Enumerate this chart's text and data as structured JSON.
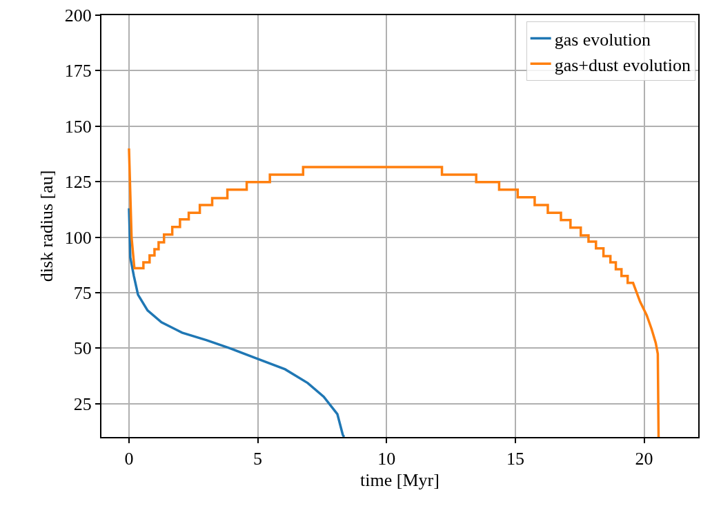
{
  "chart_data": {
    "type": "line",
    "xlabel": "time [Myr]",
    "ylabel": "disk radius [au]",
    "xlim": [
      -1.07,
      22.1
    ],
    "xticks": [
      0,
      5,
      10,
      15,
      20
    ],
    "ylim": [
      10,
      200
    ],
    "yticks": [
      25,
      50,
      75,
      100,
      125,
      150,
      175,
      200
    ],
    "grid": true,
    "legend": "top right",
    "series": [
      {
        "name": "gas evolution",
        "color": "#1f77b4",
        "x": [
          0,
          0.02,
          0.05,
          0.19,
          0.35,
          0.72,
          1.26,
          2.06,
          3.02,
          3.93,
          5,
          6.06,
          6.94,
          7.56,
          8.09,
          8.3,
          8.35
        ],
        "values": [
          113,
          105,
          90.9,
          82.5,
          74.1,
          67,
          61.7,
          57,
          53.6,
          49.9,
          45.2,
          40.5,
          34.3,
          28.1,
          20.3,
          11,
          10
        ]
      },
      {
        "name": "gas+dust evolution",
        "color": "#ff7f0e",
        "x": [
          0,
          0.1,
          0.21,
          0.56,
          0.56,
          0.8,
          0.8,
          0.99,
          0.99,
          1.15,
          1.15,
          1.36,
          1.36,
          1.68,
          1.68,
          1.98,
          1.98,
          2.32,
          2.32,
          2.75,
          2.75,
          3.23,
          3.23,
          3.82,
          3.82,
          4.57,
          4.57,
          5.47,
          5.47,
          6.76,
          6.76,
          12.15,
          12.15,
          13.48,
          13.48,
          14.37,
          14.37,
          15.09,
          15.09,
          15.75,
          15.75,
          16.26,
          16.26,
          16.77,
          16.77,
          17.14,
          17.14,
          17.54,
          17.54,
          17.84,
          17.84,
          18.13,
          18.13,
          18.42,
          18.42,
          18.69,
          18.69,
          18.9,
          18.9,
          19.12,
          19.12,
          19.36,
          19.36,
          19.57,
          19.84,
          20.1,
          20.29,
          20.45,
          20.53,
          20.56
        ],
        "values": [
          140,
          100,
          86,
          86,
          88.7,
          88.7,
          91.8,
          91.8,
          94.6,
          94.6,
          97.7,
          97.7,
          101.2,
          101.2,
          104.6,
          104.6,
          108,
          108,
          111,
          111,
          114.5,
          114.5,
          117.6,
          117.6,
          121.4,
          121.4,
          124.8,
          124.8,
          128.2,
          128.2,
          131.6,
          131.6,
          128.2,
          128.2,
          124.8,
          124.8,
          121.4,
          121.4,
          118,
          118,
          114.5,
          114.5,
          111,
          111,
          107.7,
          107.7,
          104.3,
          104.3,
          100.8,
          100.8,
          98,
          98,
          95,
          95,
          91.5,
          91.5,
          88.7,
          88.7,
          85.6,
          85.6,
          82.5,
          82.5,
          79.4,
          79.4,
          71,
          64.8,
          58.6,
          52.4,
          47.4,
          10
        ]
      }
    ]
  }
}
